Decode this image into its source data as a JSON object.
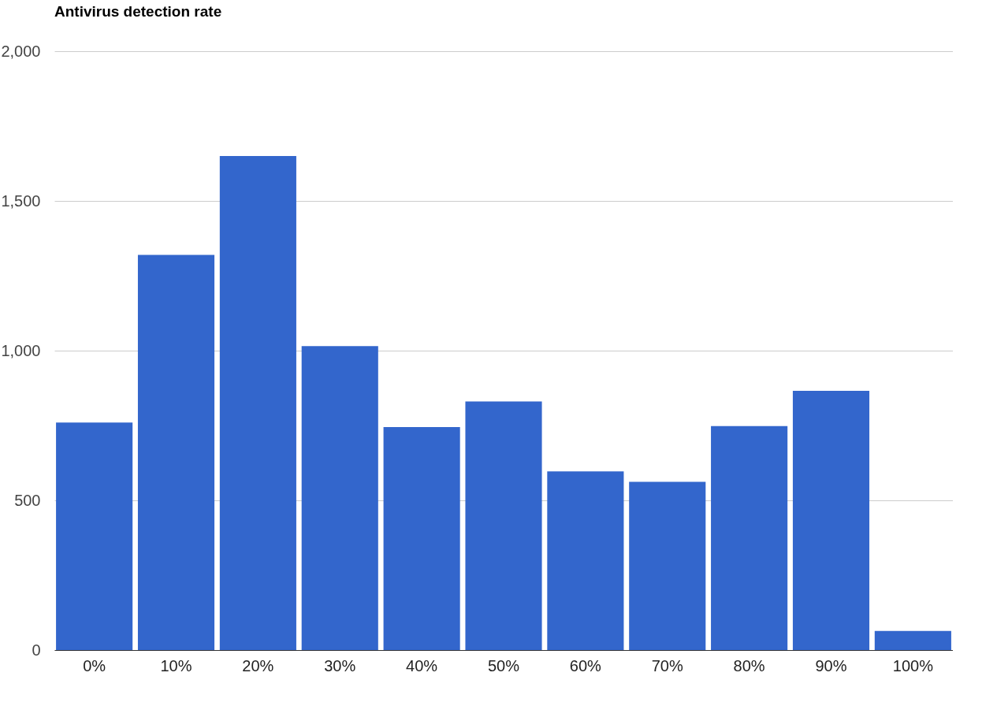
{
  "chart_data": {
    "type": "bar",
    "title": "Antivirus detection rate",
    "categories": [
      "0%",
      "10%",
      "20%",
      "30%",
      "40%",
      "50%",
      "60%",
      "70%",
      "80%",
      "90%",
      "100%"
    ],
    "values": [
      760,
      1320,
      1650,
      1015,
      745,
      830,
      597,
      562,
      748,
      866,
      64
    ],
    "color": "#3366cc",
    "ylim": [
      0,
      2000
    ],
    "yticks": [
      {
        "value": 0,
        "label": "0"
      },
      {
        "value": 500,
        "label": "500"
      },
      {
        "value": 1000,
        "label": "1,000"
      },
      {
        "value": 1500,
        "label": "1,500"
      },
      {
        "value": 2000,
        "label": "2,000"
      }
    ],
    "grid": "y"
  }
}
